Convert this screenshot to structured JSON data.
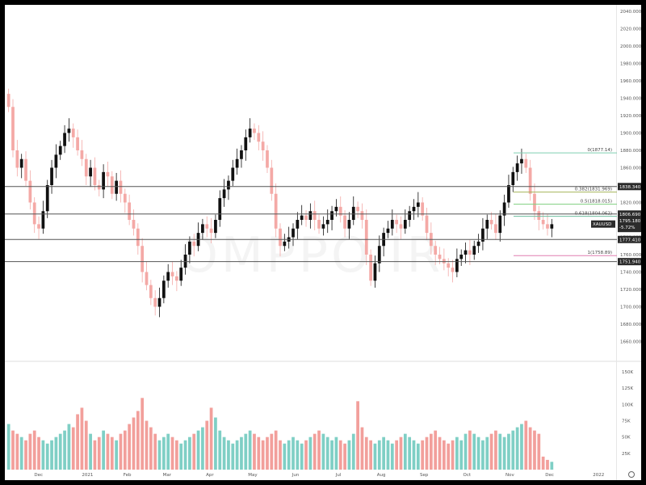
{
  "chart_data": [
    {
      "type": "candlestick",
      "symbol": "XAUUSD",
      "title": "",
      "watermark": "OMPPO.IR",
      "ylim": [
        1640,
        2040
      ],
      "y_ticks": [
        "2040.000",
        "2020.000",
        "2000.000",
        "1980.000",
        "1960.000",
        "1940.000",
        "1920.000",
        "1900.000",
        "1880.000",
        "1860.000",
        "1840.000",
        "1820.000",
        "1800.000",
        "1780.000",
        "1760.000",
        "1740.000",
        "1720.000",
        "1700.000",
        "1680.000",
        "1660.000"
      ],
      "y_tick_values": [
        2040,
        2020,
        2000,
        1980,
        1960,
        1940,
        1920,
        1900,
        1880,
        1860,
        1840,
        1820,
        1800,
        1780,
        1760,
        1740,
        1720,
        1700,
        1680,
        1660
      ],
      "x_labels": [
        "Dec",
        "2021",
        "Feb",
        "Mar",
        "Apr",
        "May",
        "Jun",
        "Jul",
        "Aug",
        "Sep",
        "Oct",
        "Nov",
        "Dec",
        "2022"
      ],
      "x_label_positions": [
        0.055,
        0.135,
        0.2,
        0.265,
        0.335,
        0.405,
        0.475,
        0.545,
        0.615,
        0.685,
        0.755,
        0.825,
        0.89,
        0.97
      ],
      "horizontal_levels": [
        {
          "value": 1838.34,
          "label": "1838.340"
        },
        {
          "value": 1806.69,
          "label": "1806.690"
        },
        {
          "value": 1777.41,
          "label": "1777.410"
        },
        {
          "value": 1751.94,
          "label": "1751.940"
        }
      ],
      "fibonacci": [
        {
          "ratio": "0",
          "value": 1877.14,
          "label": "0(1877.14)",
          "color": "#7fcfb0"
        },
        {
          "ratio": "0.382",
          "value": 1831.969,
          "label": "0.382(1831.969)",
          "color": "#a6b45a"
        },
        {
          "ratio": "0.5",
          "value": 1818.015,
          "label": "0.5(1818.015)",
          "color": "#7fcf7f"
        },
        {
          "ratio": "0.618",
          "value": 1804.062,
          "label": "0.618(1804.062)",
          "color": "#6fbfa0"
        },
        {
          "ratio": "1",
          "value": 1758.89,
          "label": "1(1758.89)",
          "color": "#e07fb0"
        }
      ],
      "last_price": {
        "value": 1795.18,
        "label": "1795.180",
        "change": "-5.72%"
      },
      "colors": {
        "up": "#26a69a",
        "down": "#ef5350",
        "up_candle": "#111111",
        "down_candle": "#f4a9a6",
        "level_line": "#555555",
        "tag_bg": "#2b2b2b"
      },
      "close_series_estimate": [
        1930,
        1880,
        1860,
        1870,
        1845,
        1820,
        1795,
        1790,
        1810,
        1840,
        1860,
        1875,
        1885,
        1900,
        1905,
        1895,
        1880,
        1870,
        1850,
        1860,
        1840,
        1835,
        1855,
        1850,
        1830,
        1845,
        1830,
        1820,
        1800,
        1790,
        1770,
        1740,
        1725,
        1710,
        1700,
        1710,
        1730,
        1740,
        1735,
        1730,
        1745,
        1760,
        1775,
        1770,
        1785,
        1795,
        1790,
        1785,
        1800,
        1825,
        1835,
        1845,
        1860,
        1870,
        1880,
        1895,
        1905,
        1900,
        1890,
        1880,
        1860,
        1830,
        1790,
        1770,
        1775,
        1780,
        1790,
        1800,
        1805,
        1800,
        1810,
        1800,
        1790,
        1795,
        1800,
        1810,
        1815,
        1805,
        1790,
        1800,
        1815,
        1810,
        1800,
        1760,
        1730,
        1750,
        1770,
        1785,
        1790,
        1800,
        1795,
        1790,
        1800,
        1810,
        1815,
        1820,
        1805,
        1785,
        1770,
        1760,
        1755,
        1750,
        1745,
        1740,
        1755,
        1760,
        1765,
        1760,
        1770,
        1775,
        1790,
        1800,
        1795,
        1785,
        1805,
        1820,
        1840,
        1855,
        1865,
        1870,
        1860,
        1830,
        1810,
        1800,
        1795,
        1790,
        1795
      ]
    },
    {
      "type": "bar",
      "title": "",
      "y_ticks": [
        "150K",
        "125K",
        "100K",
        "75K",
        "50K",
        "25K"
      ],
      "y_tick_values": [
        150,
        125,
        100,
        75,
        50,
        25
      ],
      "ylim": [
        0,
        160
      ],
      "unit": "K",
      "volume_series_estimate": [
        70,
        60,
        55,
        50,
        45,
        55,
        60,
        50,
        45,
        40,
        45,
        50,
        55,
        60,
        70,
        65,
        85,
        95,
        75,
        55,
        45,
        50,
        60,
        55,
        50,
        45,
        55,
        60,
        70,
        80,
        90,
        110,
        75,
        65,
        55,
        45,
        50,
        55,
        50,
        45,
        40,
        45,
        50,
        55,
        60,
        65,
        75,
        95,
        80,
        60,
        50,
        45,
        40,
        45,
        50,
        55,
        60,
        55,
        50,
        45,
        50,
        55,
        60,
        45,
        40,
        45,
        50,
        45,
        40,
        45,
        50,
        55,
        60,
        55,
        50,
        45,
        50,
        45,
        40,
        45,
        55,
        105,
        65,
        50,
        45,
        40,
        45,
        50,
        45,
        40,
        45,
        50,
        55,
        50,
        45,
        40,
        45,
        50,
        55,
        60,
        50,
        45,
        40,
        45,
        50,
        45,
        55,
        60,
        55,
        50,
        45,
        50,
        55,
        60,
        55,
        50,
        55,
        60,
        65,
        70,
        75,
        65,
        60,
        55,
        20,
        15,
        12
      ]
    }
  ]
}
